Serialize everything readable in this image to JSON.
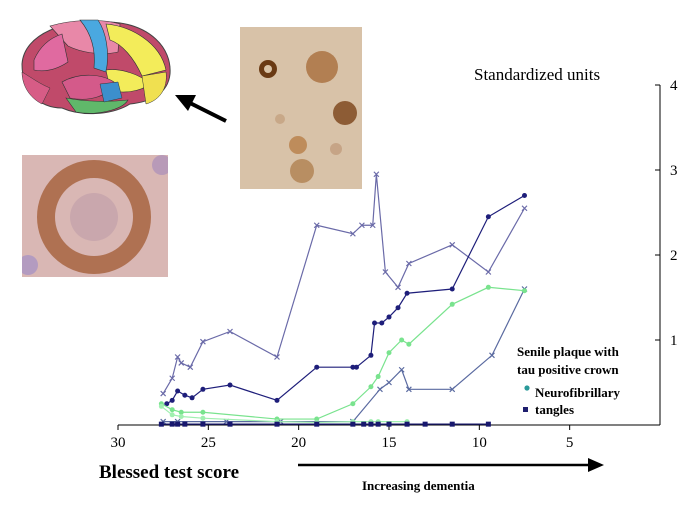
{
  "chart_data": {
    "type": "line",
    "ylabel": "Standardized units",
    "xlabel": "Blessed test score",
    "arrow_label": "Increasing dementia",
    "xlim": [
      30,
      0
    ],
    "ylim": [
      0,
      4
    ],
    "x_ticks": [
      30,
      25,
      20,
      15,
      10,
      5
    ],
    "y_ticks": [
      1,
      2,
      3,
      4
    ],
    "grid": false,
    "legend_placement": "lower-right",
    "legend": [
      {
        "label_line1": "Senile plaque with",
        "label_line2": "tau positive crown",
        "color": "#2a9a9a",
        "marker": "dot"
      },
      {
        "label_line1": "Neurofibrillary",
        "label_line2": "tangles",
        "color": "#1e1e6e",
        "marker": "square"
      }
    ],
    "series": [
      {
        "color": "#6a6aa8",
        "marker": "x",
        "points": [
          [
            27.5,
            0.37
          ],
          [
            27,
            0.55
          ],
          [
            26.7,
            0.8
          ],
          [
            26.5,
            0.73
          ],
          [
            26,
            0.68
          ],
          [
            25.3,
            0.98
          ],
          [
            23.8,
            1.1
          ],
          [
            21.2,
            0.8
          ],
          [
            19,
            2.35
          ],
          [
            17,
            2.25
          ],
          [
            16.5,
            2.35
          ],
          [
            15.9,
            2.35
          ],
          [
            15.7,
            2.95
          ],
          [
            15.2,
            1.8
          ],
          [
            14.5,
            1.62
          ],
          [
            13.9,
            1.9
          ],
          [
            11.5,
            2.12
          ],
          [
            9.5,
            1.8
          ],
          [
            7.5,
            2.55
          ]
        ]
      },
      {
        "color": "#5a6aa0",
        "marker": "x",
        "points": [
          [
            27.5,
            0.04
          ],
          [
            26.7,
            0.04
          ],
          [
            24,
            0.04
          ],
          [
            21,
            0.04
          ],
          [
            17,
            0.04
          ],
          [
            15.5,
            0.42
          ],
          [
            15,
            0.5
          ],
          [
            14.3,
            0.65
          ],
          [
            13.9,
            0.42
          ],
          [
            11.5,
            0.42
          ],
          [
            9.3,
            0.82
          ],
          [
            7.5,
            1.6
          ]
        ]
      },
      {
        "color": "#1e1e7a",
        "marker": "dot",
        "points": [
          [
            27.3,
            0.25
          ],
          [
            27,
            0.29
          ],
          [
            26.7,
            0.4
          ],
          [
            26.3,
            0.35
          ],
          [
            25.9,
            0.32
          ],
          [
            25.3,
            0.42
          ],
          [
            23.8,
            0.47
          ],
          [
            21.2,
            0.29
          ],
          [
            19,
            0.68
          ],
          [
            17,
            0.68
          ],
          [
            16.8,
            0.68
          ],
          [
            16,
            0.82
          ],
          [
            15.8,
            1.2
          ],
          [
            15.4,
            1.2
          ],
          [
            15,
            1.27
          ],
          [
            14.5,
            1.38
          ],
          [
            14,
            1.55
          ],
          [
            11.5,
            1.6
          ],
          [
            9.5,
            2.45
          ],
          [
            7.5,
            2.7
          ]
        ]
      },
      {
        "color": "#79e38e",
        "marker": "dot",
        "points": [
          [
            27.6,
            0.25
          ],
          [
            27,
            0.18
          ],
          [
            26.5,
            0.15
          ],
          [
            25.3,
            0.15
          ],
          [
            21.2,
            0.07
          ],
          [
            19,
            0.07
          ],
          [
            17,
            0.25
          ],
          [
            16,
            0.45
          ],
          [
            15.6,
            0.57
          ],
          [
            15,
            0.85
          ],
          [
            14.3,
            1.0
          ],
          [
            13.9,
            0.95
          ],
          [
            11.5,
            1.42
          ],
          [
            9.5,
            1.62
          ],
          [
            7.5,
            1.58
          ]
        ]
      },
      {
        "color": "#a0f0b0",
        "marker": "dot",
        "points": [
          [
            27.6,
            0.22
          ],
          [
            27,
            0.12
          ],
          [
            26.5,
            0.1
          ],
          [
            25.3,
            0.08
          ],
          [
            21.2,
            0.04
          ],
          [
            19,
            0.03
          ],
          [
            17,
            0.04
          ],
          [
            16,
            0.04
          ],
          [
            15.6,
            0.04
          ],
          [
            14,
            0.04
          ]
        ]
      },
      {
        "color": "#18186e",
        "marker": "square",
        "points": [
          [
            27.6,
            0.01
          ],
          [
            27,
            0.01
          ],
          [
            26.7,
            0.01
          ],
          [
            26.3,
            0.01
          ],
          [
            25.3,
            0.01
          ],
          [
            23.8,
            0.01
          ],
          [
            21.2,
            0.01
          ],
          [
            19,
            0.01
          ],
          [
            17,
            0.01
          ],
          [
            16.4,
            0.01
          ],
          [
            16,
            0.01
          ],
          [
            15.6,
            0.01
          ],
          [
            15,
            0.01
          ],
          [
            14,
            0.01
          ],
          [
            13,
            0.01
          ],
          [
            11.5,
            0.01
          ],
          [
            9.5,
            0.01
          ]
        ]
      }
    ]
  },
  "images": [
    {
      "name": "brain-map-image"
    },
    {
      "name": "micrograph-top-image"
    },
    {
      "name": "micrograph-left-image"
    }
  ]
}
